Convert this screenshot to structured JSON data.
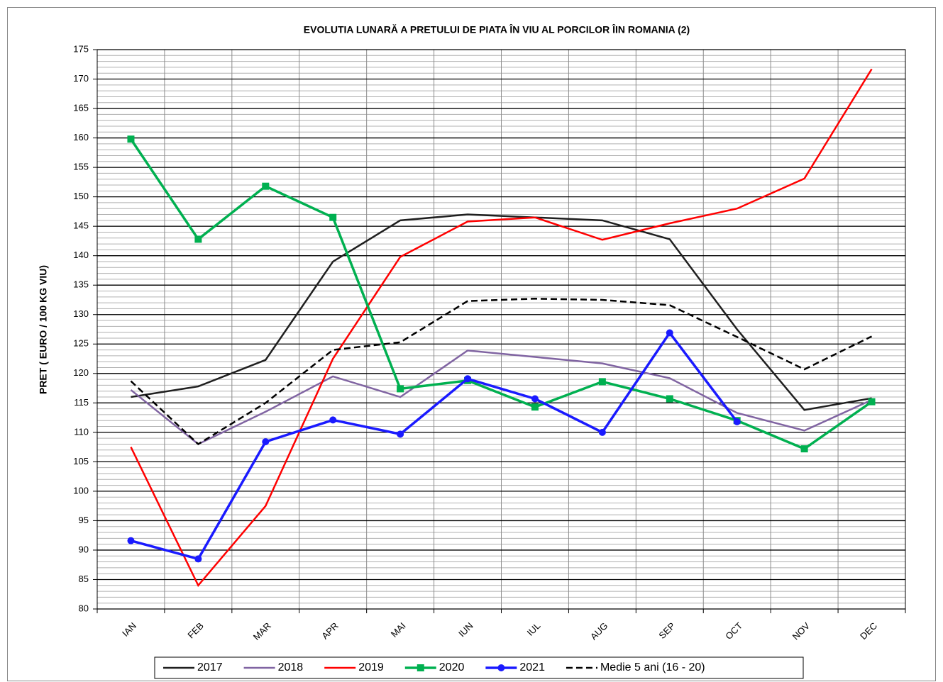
{
  "chart_data": {
    "type": "line",
    "title": "EVOLUTIA LUNARĂ  A PRETULUI  DE PIATA ÎN VIU AL PORCILOR ÎIN ROMANIA (2)",
    "y_label": "PRET ( EURO / 100 KG VIU)",
    "categories": [
      "IAN",
      "FEB",
      "MAR",
      "APR",
      "MAI",
      "IUN",
      "IUL",
      "AUG",
      "SEP",
      "OCT",
      "NOV",
      "DEC"
    ],
    "ylim": [
      80,
      175
    ],
    "yticks": [
      80,
      85,
      90,
      95,
      100,
      105,
      110,
      115,
      120,
      125,
      130,
      135,
      140,
      145,
      150,
      155,
      160,
      165,
      170,
      175
    ],
    "grid": true,
    "legend": "bottom",
    "series": [
      {
        "name": "2017",
        "color": "#1f1f1f",
        "values": [
          116,
          117.8,
          122.3,
          139,
          146,
          147,
          146.5,
          146,
          142.8,
          127.5,
          113.8,
          115.8
        ]
      },
      {
        "name": "2018",
        "color": "#8064a2",
        "values": [
          117.2,
          108,
          113.5,
          119.5,
          116,
          123.9,
          122.8,
          121.7,
          119.2,
          113.3,
          110.3,
          115.5
        ]
      },
      {
        "name": "2019",
        "color": "#ff0000",
        "values": [
          107.5,
          84,
          97.5,
          122.5,
          139.8,
          145.8,
          146.5,
          142.7,
          145.5,
          148,
          153.1,
          171.7
        ]
      },
      {
        "name": "2020",
        "color": "#00b050",
        "marker": "square",
        "values": [
          159.8,
          142.8,
          151.8,
          146.5,
          117.4,
          118.8,
          114.3,
          118.6,
          115.7,
          112,
          107.2,
          115.2
        ]
      },
      {
        "name": "2021",
        "color": "#1a1aff",
        "marker": "circle",
        "values": [
          91.6,
          88.5,
          108.4,
          112.1,
          109.7,
          119.1,
          115.7,
          110,
          126.9,
          111.8,
          null,
          null
        ]
      },
      {
        "name": "Medie 5 ani (16 - 20)",
        "color": "#000000",
        "dashed": true,
        "values": [
          118.7,
          108,
          115,
          124,
          125.3,
          132.3,
          132.7,
          132.5,
          131.6,
          126.2,
          120.7,
          126.3
        ]
      }
    ]
  }
}
